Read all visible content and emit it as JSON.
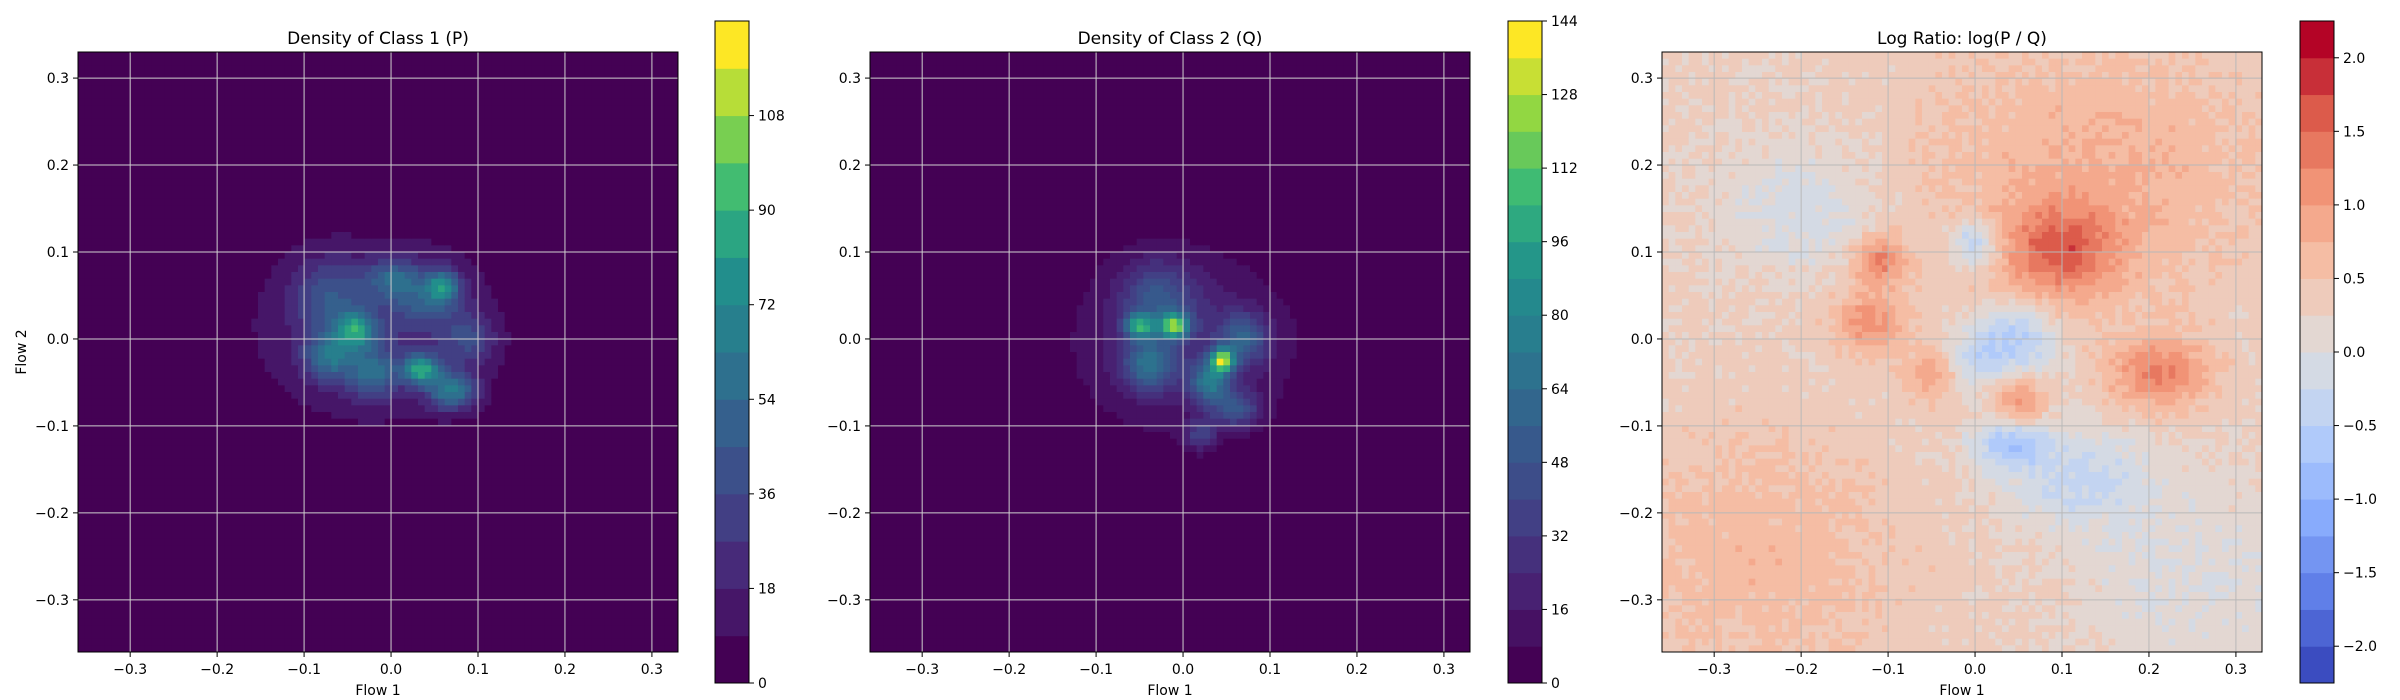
{
  "chart_data": [
    {
      "type": "heatmap",
      "title": "Density of Class 1 (P)",
      "xlabel": "Flow 1",
      "ylabel": "Flow 2",
      "xlim": [
        -0.36,
        0.33
      ],
      "ylim": [
        -0.36,
        0.33
      ],
      "xticks": [
        -0.3,
        -0.2,
        -0.1,
        0.0,
        0.1,
        0.2,
        0.3
      ],
      "yticks": [
        -0.3,
        -0.2,
        -0.1,
        0.0,
        0.1,
        0.2,
        0.3
      ],
      "xtick_labels": [
        "−0.3",
        "−0.2",
        "−0.1",
        "0.0",
        "0.1",
        "0.2",
        "0.3"
      ],
      "ytick_labels": [
        "−0.3",
        "−0.2",
        "−0.1",
        "0.0",
        "0.1",
        "0.2",
        "0.3"
      ],
      "grid": true,
      "colormap": "viridis",
      "background_color": "#440154",
      "colorbar": {
        "range": [
          0,
          126
        ],
        "ticks": [
          0,
          18,
          36,
          54,
          72,
          90,
          108
        ],
        "tick_labels": [
          "0",
          "18",
          "36",
          "54",
          "72",
          "90",
          "108"
        ],
        "levels": 14
      },
      "blobs": [
        {
          "cx": -0.02,
          "cy": 0.01,
          "sx": 0.1,
          "sy": 0.075,
          "v": 0.18
        },
        {
          "cx": -0.07,
          "cy": 0.05,
          "sx": 0.03,
          "sy": 0.03,
          "v": 0.22
        },
        {
          "cx": 0.04,
          "cy": 0.05,
          "sx": 0.03,
          "sy": 0.025,
          "v": 0.26
        },
        {
          "cx": -0.04,
          "cy": 0.01,
          "sx": 0.015,
          "sy": 0.015,
          "v": 0.45
        },
        {
          "cx": 0.035,
          "cy": -0.035,
          "sx": 0.015,
          "sy": 0.012,
          "v": 0.55
        },
        {
          "cx": 0.07,
          "cy": -0.06,
          "sx": 0.02,
          "sy": 0.015,
          "v": 0.45
        },
        {
          "cx": -0.07,
          "cy": -0.02,
          "sx": 0.02,
          "sy": 0.02,
          "v": 0.35
        },
        {
          "cx": -0.02,
          "cy": -0.04,
          "sx": 0.02,
          "sy": 0.02,
          "v": 0.32
        },
        {
          "cx": 0.06,
          "cy": 0.06,
          "sx": 0.012,
          "sy": 0.012,
          "v": 0.4
        },
        {
          "cx": 0.0,
          "cy": 0.07,
          "sx": 0.02,
          "sy": 0.015,
          "v": 0.25
        },
        {
          "cx": 0.09,
          "cy": 0.0,
          "sx": 0.02,
          "sy": 0.02,
          "v": 0.22
        }
      ]
    },
    {
      "type": "heatmap",
      "title": "Density of Class 2 (Q)",
      "xlabel": "Flow 1",
      "ylabel": "",
      "xlim": [
        -0.36,
        0.33
      ],
      "ylim": [
        -0.36,
        0.33
      ],
      "xticks": [
        -0.3,
        -0.2,
        -0.1,
        0.0,
        0.1,
        0.2,
        0.3
      ],
      "yticks": [
        -0.3,
        -0.2,
        -0.1,
        0.0,
        0.1,
        0.2,
        0.3
      ],
      "xtick_labels": [
        "−0.3",
        "−0.2",
        "−0.1",
        "0.0",
        "0.1",
        "0.2",
        "0.3"
      ],
      "ytick_labels": [
        "−0.3",
        "−0.2",
        "−0.1",
        "0.0",
        "0.1",
        "0.2",
        "0.3"
      ],
      "grid": true,
      "colormap": "viridis",
      "background_color": "#440154",
      "colorbar": {
        "range": [
          0,
          144
        ],
        "ticks": [
          0,
          16,
          32,
          48,
          64,
          80,
          96,
          112,
          128,
          144
        ],
        "tick_labels": [
          "0",
          "16",
          "32",
          "48",
          "64",
          "80",
          "96",
          "112",
          "128",
          "144"
        ],
        "levels": 18
      },
      "blobs": [
        {
          "cx": 0.0,
          "cy": -0.005,
          "sx": 0.085,
          "sy": 0.07,
          "v": 0.17
        },
        {
          "cx": -0.03,
          "cy": 0.05,
          "sx": 0.03,
          "sy": 0.03,
          "v": 0.24
        },
        {
          "cx": -0.01,
          "cy": 0.015,
          "sx": 0.012,
          "sy": 0.01,
          "v": 0.65
        },
        {
          "cx": -0.05,
          "cy": 0.015,
          "sx": 0.012,
          "sy": 0.01,
          "v": 0.5
        },
        {
          "cx": 0.045,
          "cy": -0.025,
          "sx": 0.01,
          "sy": 0.01,
          "v": 0.7
        },
        {
          "cx": 0.03,
          "cy": -0.05,
          "sx": 0.015,
          "sy": 0.015,
          "v": 0.4
        },
        {
          "cx": -0.04,
          "cy": -0.03,
          "sx": 0.02,
          "sy": 0.02,
          "v": 0.35
        },
        {
          "cx": 0.07,
          "cy": 0.0,
          "sx": 0.02,
          "sy": 0.02,
          "v": 0.3
        },
        {
          "cx": 0.06,
          "cy": -0.08,
          "sx": 0.02,
          "sy": 0.015,
          "v": 0.28
        },
        {
          "cx": 0.02,
          "cy": -0.11,
          "sx": 0.012,
          "sy": 0.012,
          "v": 0.22
        }
      ]
    },
    {
      "type": "heatmap",
      "title": "Log Ratio: log(P / Q)",
      "xlabel": "Flow 1",
      "ylabel": "",
      "xlim": [
        -0.36,
        0.33
      ],
      "ylim": [
        -0.36,
        0.33
      ],
      "xticks": [
        -0.3,
        -0.2,
        -0.1,
        0.0,
        0.1,
        0.2,
        0.3
      ],
      "yticks": [
        -0.3,
        -0.2,
        -0.1,
        0.0,
        0.1,
        0.2,
        0.3
      ],
      "xtick_labels": [
        "−0.3",
        "−0.2",
        "−0.1",
        "0.0",
        "0.1",
        "0.2",
        "0.3"
      ],
      "ytick_labels": [
        "−0.3",
        "−0.2",
        "−0.1",
        "0.0",
        "0.1",
        "0.2",
        "0.3"
      ],
      "grid": true,
      "colormap": "coolwarm",
      "colorbar": {
        "range": [
          -2.25,
          2.25
        ],
        "ticks": [
          -2.0,
          -1.5,
          -1.0,
          -0.5,
          0.0,
          0.5,
          1.0,
          1.5,
          2.0
        ],
        "tick_labels": [
          "−2.0",
          "−1.5",
          "−1.0",
          "−0.5",
          "0.0",
          "0.5",
          "1.0",
          "1.5",
          "2.0"
        ],
        "levels": 18
      },
      "blobs": [
        {
          "cx": 0.1,
          "cy": 0.1,
          "sx": 0.05,
          "sy": 0.04,
          "v": 1.1
        },
        {
          "cx": 0.21,
          "cy": -0.04,
          "sx": 0.04,
          "sy": 0.03,
          "v": 1.0
        },
        {
          "cx": -0.11,
          "cy": 0.09,
          "sx": 0.02,
          "sy": 0.02,
          "v": 1.0
        },
        {
          "cx": -0.12,
          "cy": 0.02,
          "sx": 0.03,
          "sy": 0.025,
          "v": 0.8
        },
        {
          "cx": 0.05,
          "cy": -0.07,
          "sx": 0.02,
          "sy": 0.02,
          "v": 0.9
        },
        {
          "cx": -0.05,
          "cy": -0.04,
          "sx": 0.02,
          "sy": 0.02,
          "v": 0.7
        },
        {
          "cx": 0.0,
          "cy": 0.11,
          "sx": 0.02,
          "sy": 0.02,
          "v": -0.9
        },
        {
          "cx": 0.05,
          "cy": 0.0,
          "sx": 0.03,
          "sy": 0.03,
          "v": -0.9
        },
        {
          "cx": 0.04,
          "cy": -0.12,
          "sx": 0.03,
          "sy": 0.02,
          "v": -0.9
        },
        {
          "cx": 0.12,
          "cy": -0.16,
          "sx": 0.06,
          "sy": 0.04,
          "v": -0.6
        },
        {
          "cx": -0.2,
          "cy": 0.15,
          "sx": 0.06,
          "sy": 0.05,
          "v": -0.45
        },
        {
          "cx": 0.0,
          "cy": -0.02,
          "sx": 0.025,
          "sy": 0.025,
          "v": -0.6
        },
        {
          "cx": 0.14,
          "cy": 0.2,
          "sx": 0.14,
          "sy": 0.1,
          "v": 0.45
        },
        {
          "cx": -0.25,
          "cy": -0.25,
          "sx": 0.12,
          "sy": 0.1,
          "v": 0.35
        },
        {
          "cx": 0.25,
          "cy": -0.28,
          "sx": 0.1,
          "sy": 0.08,
          "v": -0.3
        }
      ],
      "baseline": 0.3
    }
  ]
}
